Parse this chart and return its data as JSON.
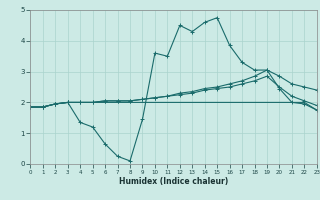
{
  "xlabel": "Humidex (Indice chaleur)",
  "xlim": [
    0,
    23
  ],
  "ylim": [
    0,
    5
  ],
  "xticks": [
    0,
    1,
    2,
    3,
    4,
    5,
    6,
    7,
    8,
    9,
    10,
    11,
    12,
    13,
    14,
    15,
    16,
    17,
    18,
    19,
    20,
    21,
    22,
    23
  ],
  "yticks": [
    0,
    1,
    2,
    3,
    4,
    5
  ],
  "bg_color": "#cceae5",
  "grid_color": "#aad4ce",
  "line_color": "#1a6b6b",
  "line1_x": [
    0,
    1,
    2,
    3,
    4,
    5,
    6,
    7,
    8,
    9,
    10,
    11,
    12,
    13,
    14,
    15,
    16,
    17,
    18,
    19,
    20,
    21,
    22,
    23
  ],
  "line1_y": [
    1.85,
    1.85,
    1.95,
    2.0,
    1.35,
    1.2,
    0.65,
    0.25,
    0.1,
    1.45,
    3.6,
    3.5,
    4.5,
    4.3,
    4.6,
    4.75,
    3.85,
    3.3,
    3.05,
    3.05,
    2.45,
    2.0,
    1.95,
    1.75
  ],
  "line2_x": [
    0,
    1,
    2,
    3,
    4,
    5,
    6,
    7,
    8,
    9,
    10,
    11,
    12,
    13,
    14,
    15,
    16,
    17,
    18,
    19,
    20,
    21,
    22,
    23
  ],
  "line2_y": [
    1.85,
    1.85,
    1.95,
    2.0,
    2.0,
    2.0,
    2.05,
    2.05,
    2.05,
    2.1,
    2.15,
    2.2,
    2.3,
    2.35,
    2.45,
    2.5,
    2.6,
    2.7,
    2.85,
    3.05,
    2.85,
    2.6,
    2.5,
    2.4
  ],
  "line3_x": [
    0,
    1,
    2,
    3,
    4,
    5,
    6,
    7,
    8,
    9,
    10,
    11,
    12,
    13,
    14,
    15,
    16,
    17,
    18,
    19,
    20,
    21,
    22,
    23
  ],
  "line3_y": [
    1.85,
    1.85,
    1.95,
    2.0,
    2.0,
    2.0,
    2.05,
    2.05,
    2.05,
    2.1,
    2.15,
    2.2,
    2.25,
    2.3,
    2.4,
    2.45,
    2.5,
    2.6,
    2.7,
    2.85,
    2.5,
    2.2,
    2.05,
    1.9
  ],
  "line4_x": [
    0,
    1,
    2,
    3,
    4,
    5,
    6,
    7,
    8,
    9,
    10,
    11,
    12,
    13,
    14,
    15,
    16,
    17,
    18,
    19,
    20,
    21,
    22,
    23
  ],
  "line4_y": [
    1.85,
    1.85,
    1.95,
    2.0,
    2.0,
    2.0,
    2.0,
    2.0,
    2.0,
    2.0,
    2.0,
    2.0,
    2.0,
    2.0,
    2.0,
    2.0,
    2.0,
    2.0,
    2.0,
    2.0,
    2.0,
    2.0,
    2.0,
    1.75
  ]
}
